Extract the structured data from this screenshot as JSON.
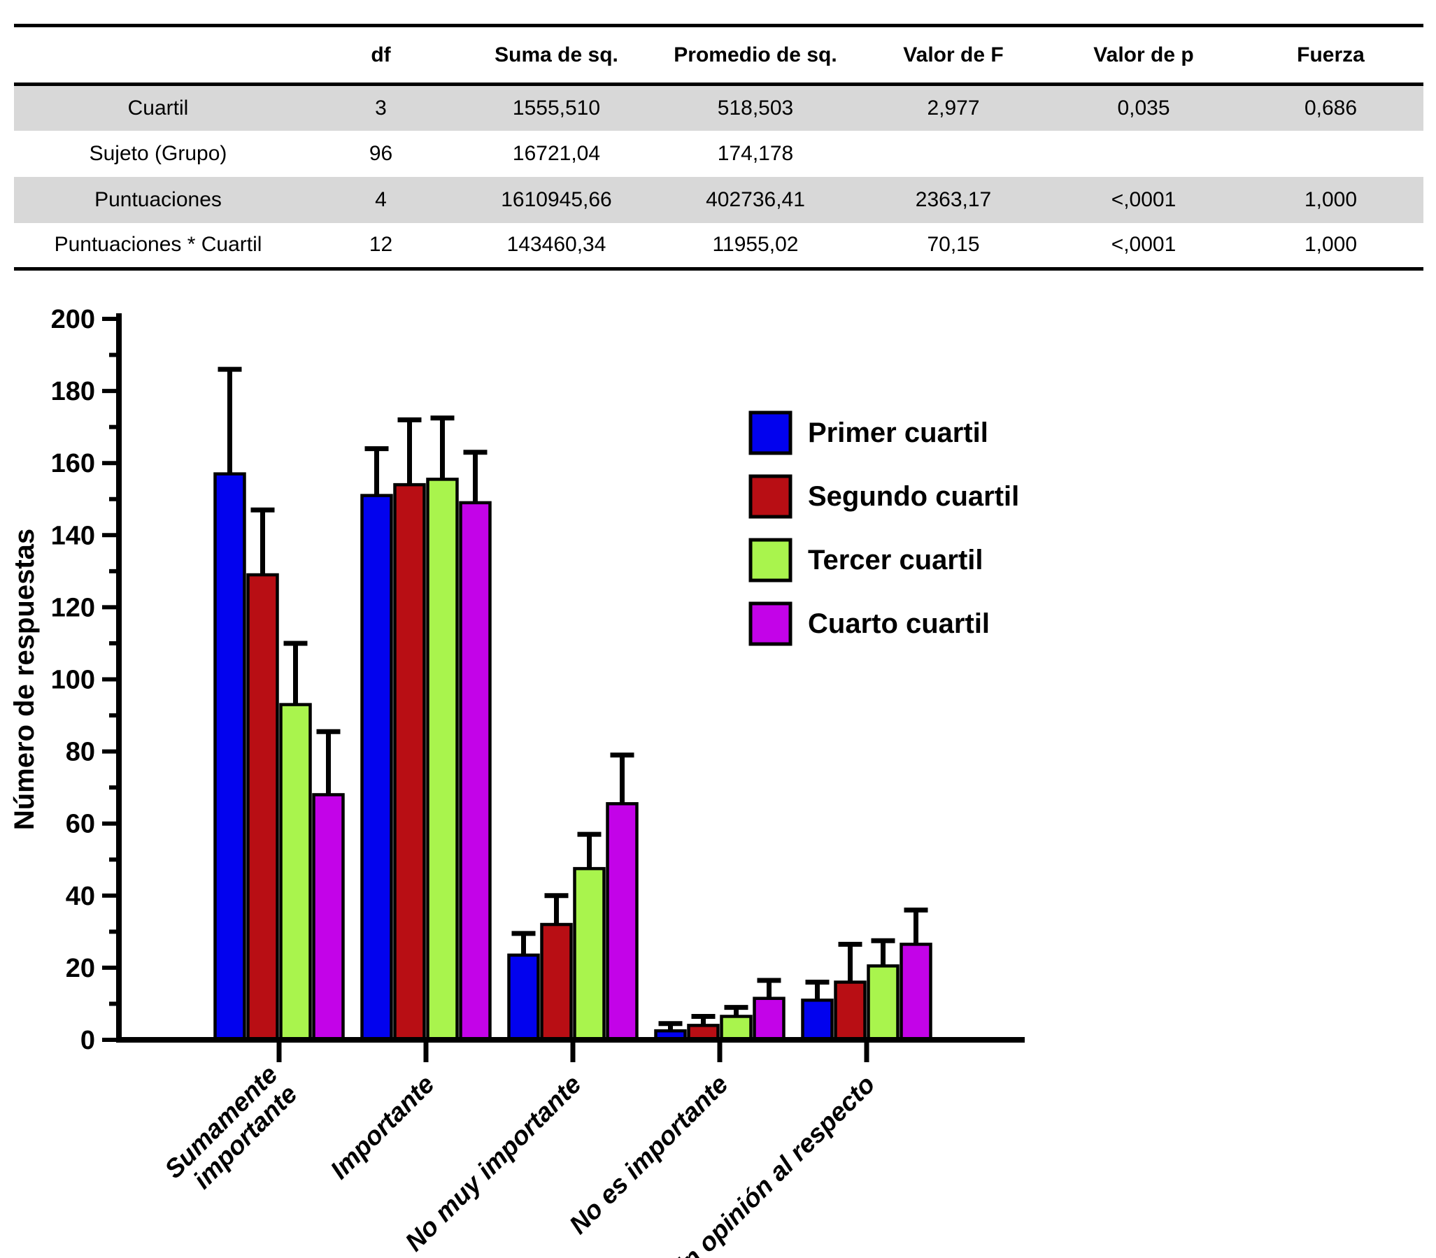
{
  "chart_data": [
    {
      "type": "table",
      "columns": [
        "",
        "df",
        "Suma de sq.",
        "Promedio de sq.",
        "Valor de F",
        "Valor de p",
        "Fuerza"
      ],
      "rows": [
        {
          "cells": [
            "Cuartil",
            "3",
            "1555,510",
            "518,503",
            "2,977",
            "0,035",
            "0,686"
          ],
          "shaded": true
        },
        {
          "cells": [
            "Sujeto (Grupo)",
            "96",
            "16721,04",
            "174,178",
            "",
            "",
            ""
          ],
          "shaded": false
        },
        {
          "cells": [
            "Puntuaciones",
            "4",
            "1610945,66",
            "402736,41",
            "2363,17",
            "<,0001",
            "1,000"
          ],
          "shaded": true
        },
        {
          "cells": [
            "Puntuaciones * Cuartil",
            "12",
            "143460,34",
            "11955,02",
            "70,15",
            "<,0001",
            "1,000"
          ],
          "shaded": false
        }
      ]
    },
    {
      "type": "bar",
      "title": "",
      "xlabel": "",
      "ylabel": "Número de respuestas",
      "ylim": [
        0,
        200
      ],
      "ytick_major": 20,
      "ytick_minor": 10,
      "grid": false,
      "legend_position": "upper right",
      "categories": [
        "Sumamente\nimportante",
        "Importante",
        "No muy importante",
        "No es importante",
        "Sin opinión al respecto"
      ],
      "series": [
        {
          "name": "Primer cuartil",
          "color": "#0202ee",
          "values": [
            157,
            151,
            23.5,
            2.5,
            11
          ],
          "error_up": [
            29,
            13,
            6,
            2,
            5
          ]
        },
        {
          "name": "Segundo cuartil",
          "color": "#b80e14",
          "values": [
            129,
            154,
            32,
            4,
            16
          ],
          "error_up": [
            18,
            18,
            8,
            2.5,
            10.5
          ]
        },
        {
          "name": "Tercer cuartil",
          "color": "#a9f44d",
          "values": [
            93,
            155.5,
            47.5,
            6.5,
            20.5
          ],
          "error_up": [
            17,
            17,
            9.5,
            2.5,
            7
          ]
        },
        {
          "name": "Cuarto cuartil",
          "color": "#c303e8",
          "values": [
            68,
            149,
            65.5,
            11.5,
            26.5
          ],
          "error_up": [
            17.5,
            14,
            13.5,
            5,
            9.5
          ]
        }
      ]
    }
  ]
}
